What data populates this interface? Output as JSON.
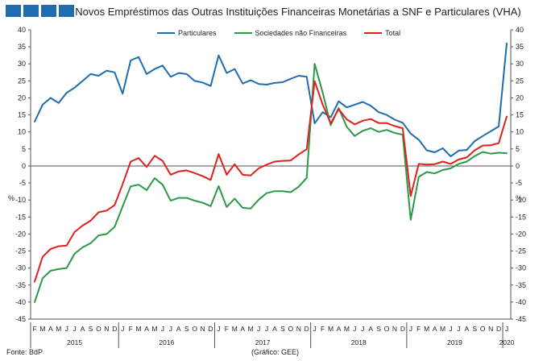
{
  "logo": {
    "blocks": 4,
    "color": "#1f6cb0"
  },
  "chart_data": {
    "type": "line",
    "title": "Novos Empréstimos das Outras Instituições Financeiras Monetárias a SNF e Particulares (VHA)",
    "ylabel_left": "%",
    "ylabel_right": "%",
    "ylim": [
      -45,
      40
    ],
    "yticks": [
      -45,
      -40,
      -35,
      -30,
      -25,
      -20,
      -15,
      -10,
      -5,
      0,
      5,
      10,
      15,
      20,
      25,
      30,
      35,
      40
    ],
    "month_labels": [
      "F",
      "M",
      "A",
      "M",
      "J",
      "J",
      "A",
      "S",
      "O",
      "N",
      "D",
      "J",
      "F",
      "M",
      "A",
      "M",
      "J",
      "J",
      "A",
      "S",
      "O",
      "N",
      "D",
      "J",
      "F",
      "M",
      "A",
      "M",
      "J",
      "J",
      "A",
      "S",
      "O",
      "N",
      "D",
      "J",
      "F",
      "M",
      "A",
      "M",
      "J",
      "J",
      "A",
      "S",
      "O",
      "N",
      "D",
      "J",
      "F",
      "M",
      "A",
      "M",
      "J",
      "J",
      "A",
      "S",
      "O",
      "N",
      "D",
      "J"
    ],
    "year_labels": [
      "2015",
      "2016",
      "2017",
      "2018",
      "2019",
      "2020"
    ],
    "x_start": "2015-02",
    "x_end": "2020-01",
    "series": [
      {
        "name": "Particulares",
        "color": "#1f6cb0",
        "values": [
          13,
          18,
          20,
          18.5,
          21.5,
          23,
          25,
          27,
          26.5,
          28,
          27.5,
          21.2,
          31,
          32,
          27,
          28.5,
          29.5,
          26.2,
          27.3,
          27,
          25,
          24.5,
          23.5,
          32.5,
          27.3,
          28.5,
          24.2,
          25.2,
          24.1,
          23.9,
          24.4,
          24.6,
          25.6,
          26.5,
          26.2,
          12.5,
          15.8,
          14.3,
          19,
          17.2,
          18,
          18.8,
          17.7,
          15.8,
          15,
          13.6,
          12.7,
          9.5,
          7.7,
          4.6,
          4,
          5.2,
          2.8,
          4.5,
          4.7,
          7.3,
          8.8,
          10.2,
          11.6,
          36
        ]
      },
      {
        "name": "Sociedades não Financeiras",
        "color": "#2a9a47",
        "values": [
          -40,
          -33,
          -30.8,
          -30.3,
          -30,
          -25.8,
          -23.9,
          -22.7,
          -20.4,
          -20,
          -17.9,
          -11.9,
          -6,
          -5.5,
          -7.1,
          -3.6,
          -5.5,
          -10.2,
          -9.4,
          -9.4,
          -10.2,
          -10.8,
          -11.8,
          -5.9,
          -12.1,
          -9.6,
          -12.3,
          -12.5,
          -9.9,
          -8,
          -7.4,
          -7.4,
          -7.7,
          -6.1,
          -3.5,
          30,
          21.5,
          12,
          17,
          11.5,
          8.8,
          10.3,
          11.1,
          10,
          10.6,
          9.7,
          9.2,
          -15.8,
          -3.2,
          -1.8,
          -2.2,
          -1.2,
          -0.7,
          0.6,
          1.3,
          2.9,
          4.1,
          3.6,
          3.9,
          3.7
        ]
      },
      {
        "name": "Total",
        "color": "#e0201f",
        "values": [
          -34,
          -26.7,
          -24.4,
          -23.6,
          -23.4,
          -19.4,
          -17.5,
          -16.1,
          -13.6,
          -13.1,
          -11.5,
          -5.4,
          1.3,
          2.3,
          -0.3,
          3,
          1.5,
          -2.6,
          -1.6,
          -1.3,
          -2.1,
          -3,
          -4.1,
          3.5,
          -2.6,
          0.5,
          -2.6,
          -2.8,
          -0.7,
          0.4,
          1.3,
          1.5,
          1.6,
          3.4,
          4.9,
          24.9,
          18,
          12.5,
          16.7,
          13.7,
          12.2,
          13.3,
          13.8,
          12.6,
          12.6,
          11.7,
          11.1,
          -8.8,
          0.6,
          0.4,
          0.5,
          1.3,
          0.6,
          1.9,
          2.5,
          4.6,
          6,
          6.1,
          6.7,
          14.5
        ]
      }
    ]
  },
  "footer": {
    "source": "Fonte: BdP",
    "credit": "(Gráfico: GEE)"
  }
}
